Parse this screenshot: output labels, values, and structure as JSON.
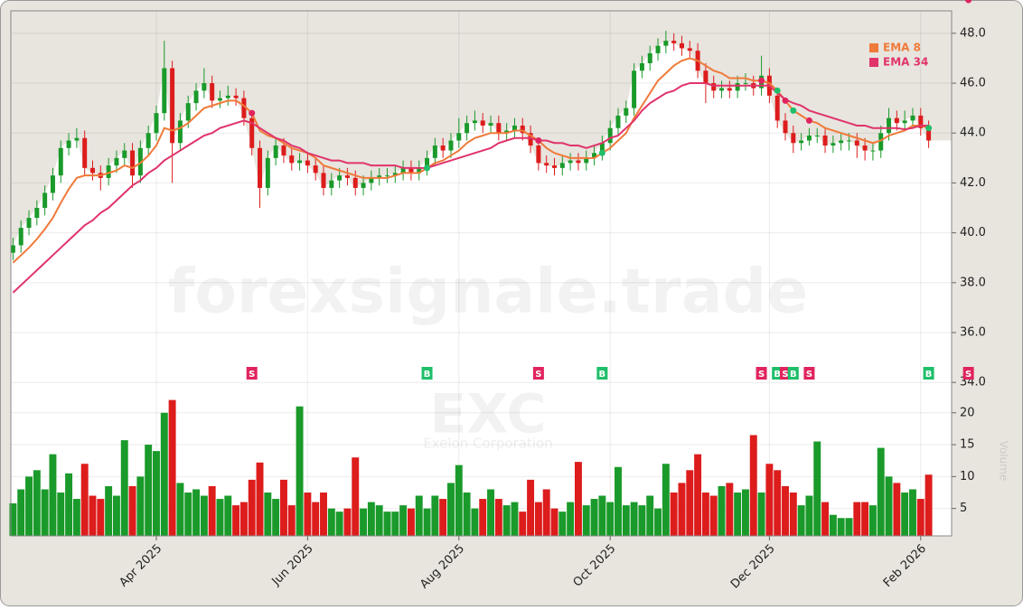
{
  "chart_data": {
    "type": "candlestick",
    "watermark": "forexsignale.trade",
    "symbol": "EXC",
    "company": "Exelon Corporation",
    "up_color": "#1a9a2a",
    "down_color": "#dd1c1c",
    "background_color": "#e8e4de",
    "legend": "upper right",
    "grid": true,
    "categories": [
      null,
      null,
      null,
      null,
      null,
      null,
      null,
      null,
      null,
      null,
      null,
      null,
      null,
      null,
      null,
      null,
      null,
      null,
      "Apr 2025",
      null,
      null,
      null,
      null,
      null,
      null,
      null,
      null,
      null,
      null,
      null,
      null,
      null,
      null,
      null,
      null,
      null,
      null,
      "Jun 2025",
      null,
      null,
      null,
      null,
      null,
      null,
      null,
      null,
      null,
      null,
      null,
      null,
      null,
      null,
      null,
      null,
      null,
      null,
      "Aug 2025",
      null,
      null,
      null,
      null,
      null,
      null,
      null,
      null,
      null,
      null,
      null,
      null,
      null,
      null,
      null,
      null,
      null,
      null,
      "Oct 2025",
      null,
      null,
      null,
      null,
      null,
      null,
      null,
      null,
      null,
      null,
      null,
      null,
      null,
      null,
      null,
      null,
      null,
      null,
      null,
      "Dec 2025",
      null,
      null,
      null,
      null,
      null,
      null,
      null,
      null,
      null,
      null,
      null,
      null,
      null,
      null,
      null,
      null,
      null,
      null,
      "Feb 2026",
      null
    ],
    "open": [
      39.2,
      39.5,
      40.2,
      40.6,
      41.0,
      41.6,
      42.3,
      43.4,
      43.7,
      43.8,
      42.6,
      42.4,
      42.2,
      42.7,
      43.0,
      43.3,
      42.3,
      43.4,
      44.0,
      44.8,
      46.6,
      43.6,
      44.5,
      45.2,
      45.7,
      46.0,
      45.3,
      45.4,
      45.5,
      45.4,
      44.6,
      43.4,
      41.8,
      43.0,
      43.5,
      43.1,
      42.8,
      42.9,
      42.7,
      42.4,
      41.8,
      42.1,
      42.3,
      42.2,
      41.8,
      42.0,
      42.2,
      42.3,
      42.3,
      42.4,
      42.6,
      42.4,
      42.6,
      43.0,
      43.5,
      43.3,
      43.7,
      44.0,
      44.4,
      44.5,
      44.3,
      44.4,
      44.0,
      44.1,
      44.3,
      44.0,
      43.5,
      42.8,
      42.7,
      42.6,
      42.8,
      42.9,
      42.8,
      43.0,
      43.2,
      43.6,
      44.2,
      44.7,
      45.0,
      46.5,
      46.8,
      47.2,
      47.5,
      47.7,
      47.6,
      47.4,
      47.3,
      46.5,
      46.0,
      45.7,
      45.8,
      45.7,
      46.0,
      46.0,
      45.8,
      46.3,
      45.5,
      44.5,
      44.0,
      43.6,
      43.7,
      43.9,
      43.9,
      43.5,
      43.6,
      43.7,
      43.7,
      43.5,
      43.3,
      43.3,
      44.0,
      44.6,
      44.4,
      44.5,
      44.7,
      44.2
    ],
    "high": [
      39.8,
      40.5,
      40.9,
      41.3,
      41.9,
      42.6,
      43.7,
      44.0,
      44.2,
      44.1,
      42.9,
      42.7,
      43.0,
      43.3,
      43.6,
      43.6,
      43.7,
      44.3,
      45.1,
      47.7,
      46.9,
      44.8,
      45.5,
      46.0,
      46.6,
      46.3,
      45.7,
      45.9,
      45.8,
      45.7,
      44.9,
      43.7,
      43.3,
      43.8,
      43.8,
      43.4,
      43.2,
      43.2,
      43.0,
      42.7,
      42.4,
      42.6,
      42.6,
      42.5,
      42.3,
      42.5,
      42.6,
      42.6,
      42.7,
      42.9,
      42.9,
      42.9,
      43.3,
      43.8,
      43.8,
      44.0,
      44.6,
      44.7,
      44.9,
      44.8,
      44.7,
      44.7,
      44.4,
      44.6,
      44.6,
      44.3,
      43.8,
      43.1,
      43.0,
      43.1,
      43.2,
      43.2,
      43.3,
      43.5,
      43.9,
      44.5,
      45.0,
      45.3,
      46.8,
      47.1,
      47.5,
      47.8,
      48.1,
      48.0,
      47.9,
      47.7,
      47.6,
      46.8,
      46.3,
      46.1,
      46.1,
      46.3,
      46.4,
      46.3,
      47.1,
      46.6,
      45.8,
      44.8,
      44.3,
      44.0,
      44.2,
      44.2,
      44.2,
      43.9,
      44.0,
      44.0,
      44.0,
      43.8,
      43.6,
      44.3,
      45.0,
      44.9,
      44.9,
      45.0,
      45.0,
      44.5
    ],
    "low": [
      38.9,
      39.2,
      39.9,
      40.3,
      40.7,
      41.3,
      42.0,
      43.1,
      43.4,
      42.3,
      42.1,
      41.7,
      41.9,
      42.4,
      42.7,
      41.8,
      42.0,
      43.1,
      43.7,
      44.5,
      42.0,
      43.3,
      44.2,
      44.9,
      45.4,
      45.0,
      45.0,
      45.1,
      45.1,
      44.3,
      43.1,
      41.0,
      41.5,
      42.7,
      42.8,
      42.5,
      42.5,
      42.4,
      42.1,
      41.5,
      41.5,
      41.8,
      41.9,
      41.5,
      41.5,
      41.7,
      41.9,
      42.0,
      42.0,
      42.1,
      42.1,
      42.1,
      42.3,
      42.7,
      43.0,
      43.0,
      43.4,
      43.7,
      44.1,
      44.0,
      44.0,
      43.7,
      43.7,
      43.8,
      43.7,
      43.2,
      42.5,
      42.4,
      42.3,
      42.3,
      42.5,
      42.5,
      42.5,
      42.7,
      42.9,
      43.3,
      43.9,
      44.4,
      44.7,
      46.2,
      46.5,
      46.9,
      47.2,
      47.3,
      47.1,
      47.0,
      46.2,
      45.2,
      45.4,
      45.4,
      45.4,
      45.4,
      45.7,
      45.5,
      45.5,
      45.2,
      44.2,
      43.7,
      43.2,
      43.3,
      43.5,
      43.6,
      43.2,
      43.2,
      43.3,
      43.3,
      43.0,
      42.9,
      42.9,
      43.0,
      43.7,
      44.1,
      44.1,
      44.2,
      43.9,
      43.4
    ],
    "close": [
      39.5,
      40.2,
      40.6,
      41.0,
      41.6,
      42.3,
      43.4,
      43.7,
      43.8,
      42.6,
      42.4,
      42.2,
      42.7,
      43.0,
      43.3,
      42.3,
      43.4,
      44.0,
      44.8,
      46.6,
      43.6,
      44.5,
      45.2,
      45.7,
      46.0,
      45.3,
      45.4,
      45.5,
      45.4,
      44.6,
      43.4,
      41.8,
      43.0,
      43.5,
      43.1,
      42.8,
      42.9,
      42.7,
      42.4,
      41.8,
      42.1,
      42.3,
      42.2,
      41.8,
      42.0,
      42.2,
      42.3,
      42.3,
      42.4,
      42.6,
      42.4,
      42.6,
      43.0,
      43.5,
      43.3,
      43.7,
      44.0,
      44.4,
      44.5,
      44.3,
      44.4,
      44.0,
      44.1,
      44.3,
      44.0,
      43.5,
      42.8,
      42.7,
      42.6,
      42.8,
      42.9,
      42.8,
      43.0,
      43.2,
      43.6,
      44.2,
      44.7,
      45.0,
      46.5,
      46.8,
      47.2,
      47.5,
      47.7,
      47.6,
      47.4,
      47.3,
      46.5,
      46.0,
      45.7,
      45.8,
      45.7,
      46.0,
      46.0,
      45.8,
      46.3,
      45.5,
      44.5,
      44.0,
      43.6,
      43.7,
      43.9,
      43.9,
      43.5,
      43.6,
      43.7,
      43.7,
      43.5,
      43.3,
      43.3,
      44.0,
      44.6,
      44.4,
      44.5,
      44.7,
      44.2,
      43.7
    ],
    "series": [
      {
        "name": "EMA 8",
        "color": "#f07a3a",
        "values": [
          38.8,
          39.1,
          39.4,
          39.75,
          40.15,
          40.6,
          41.2,
          41.75,
          42.2,
          42.3,
          42.3,
          42.3,
          42.4,
          42.5,
          42.7,
          42.6,
          42.8,
          43.1,
          43.5,
          44.2,
          44.1,
          44.2,
          44.4,
          44.7,
          45.0,
          45.1,
          45.2,
          45.3,
          45.3,
          45.1,
          44.8,
          44.1,
          43.9,
          43.8,
          43.6,
          43.4,
          43.3,
          43.2,
          43.0,
          42.7,
          42.6,
          42.5,
          42.4,
          42.3,
          42.2,
          42.2,
          42.2,
          42.2,
          42.3,
          42.4,
          42.4,
          42.4,
          42.6,
          42.8,
          42.9,
          43.1,
          43.3,
          43.6,
          43.8,
          43.9,
          44.0,
          44.0,
          44.0,
          44.1,
          44.1,
          43.9,
          43.7,
          43.4,
          43.2,
          43.1,
          43.0,
          43.0,
          43.0,
          43.0,
          43.2,
          43.4,
          43.7,
          44.0,
          44.6,
          45.1,
          45.6,
          46.1,
          46.4,
          46.7,
          46.9,
          47.0,
          46.9,
          46.7,
          46.5,
          46.4,
          46.2,
          46.2,
          46.2,
          46.1,
          46.1,
          46.0,
          45.7,
          45.3,
          44.9,
          44.7,
          44.5,
          44.4,
          44.2,
          44.1,
          44.0,
          43.9,
          43.8,
          43.7,
          43.6,
          43.7,
          43.9,
          44.0,
          44.1,
          44.3,
          44.3,
          44.2
        ]
      },
      {
        "name": "EMA 34",
        "color": "#e0336a",
        "values": [
          37.6,
          37.9,
          38.2,
          38.5,
          38.8,
          39.1,
          39.4,
          39.7,
          40.0,
          40.3,
          40.5,
          40.8,
          41.0,
          41.3,
          41.6,
          41.9,
          42.1,
          42.4,
          42.6,
          42.9,
          43.1,
          43.3,
          43.5,
          43.7,
          43.9,
          44.0,
          44.2,
          44.3,
          44.4,
          44.5,
          44.4,
          44.2,
          44.0,
          43.8,
          43.7,
          43.5,
          43.4,
          43.2,
          43.1,
          43.0,
          42.9,
          42.9,
          42.8,
          42.8,
          42.8,
          42.7,
          42.7,
          42.7,
          42.7,
          42.6,
          42.6,
          42.6,
          42.6,
          42.7,
          42.8,
          42.9,
          43.0,
          43.1,
          43.2,
          43.3,
          43.4,
          43.6,
          43.7,
          43.8,
          43.8,
          43.8,
          43.7,
          43.7,
          43.6,
          43.6,
          43.5,
          43.5,
          43.4,
          43.5,
          43.6,
          43.8,
          43.9,
          44.2,
          44.5,
          44.9,
          45.2,
          45.4,
          45.6,
          45.7,
          45.9,
          46.0,
          46.0,
          46.0,
          45.9,
          45.9,
          45.9,
          45.9,
          45.9,
          45.9,
          45.9,
          45.9,
          45.6,
          45.35,
          45.2,
          45.1,
          44.9,
          44.8,
          44.7,
          44.6,
          44.5,
          44.4,
          44.3,
          44.3,
          44.2,
          44.2,
          44.2,
          44.2,
          44.15,
          44.2,
          44.3,
          44.3
        ]
      }
    ],
    "signals": [
      null,
      null,
      null,
      null,
      null,
      null,
      null,
      null,
      null,
      null,
      null,
      null,
      null,
      null,
      null,
      null,
      null,
      null,
      null,
      null,
      null,
      null,
      null,
      null,
      null,
      null,
      null,
      null,
      null,
      null,
      "S",
      null,
      null,
      null,
      null,
      null,
      null,
      null,
      null,
      null,
      null,
      null,
      null,
      null,
      null,
      null,
      null,
      null,
      null,
      null,
      null,
      null,
      "B",
      null,
      null,
      null,
      null,
      null,
      null,
      null,
      null,
      null,
      null,
      null,
      null,
      null,
      "S",
      null,
      null,
      null,
      null,
      null,
      null,
      null,
      "B",
      null,
      null,
      null,
      null,
      null,
      null,
      null,
      null,
      null,
      null,
      null,
      null,
      null,
      null,
      null,
      null,
      null,
      null,
      null,
      "S",
      null,
      "B",
      "S",
      "B",
      null,
      "S",
      null,
      null,
      null,
      null,
      null,
      null,
      null,
      null,
      null,
      null,
      null,
      null,
      null,
      null,
      "B",
      null,
      null,
      null,
      null,
      "S"
    ],
    "signal_colors": {
      "S": "#e0245e",
      "B": "#1fbf6a"
    },
    "ylim": [
      33.5,
      48.9
    ],
    "yticks": [
      {
        "value": 34,
        "label": "34.0"
      },
      {
        "value": 36,
        "label": "36.0"
      },
      {
        "value": 38,
        "label": "38.0"
      },
      {
        "value": 40,
        "label": "40.0"
      },
      {
        "value": 42,
        "label": "42.0"
      },
      {
        "value": 44,
        "label": "44.0"
      },
      {
        "value": 46,
        "label": "46.0"
      },
      {
        "value": 48,
        "label": "48.0"
      }
    ],
    "volume": {
      "axis_label": "Volume",
      "ylim": [
        0.7,
        22.8
      ],
      "yticks": [
        5,
        10,
        15,
        20
      ],
      "values": [
        5.8,
        8,
        10,
        11,
        8,
        13.5,
        7.5,
        10.5,
        6.5,
        12,
        7,
        6.5,
        8.5,
        7,
        15.7,
        8.5,
        10,
        15,
        14,
        20,
        22,
        9,
        7.5,
        8,
        7,
        8.5,
        6.5,
        7,
        5.5,
        6,
        9.5,
        12.2,
        7.5,
        6.5,
        9.5,
        5.5,
        21,
        7.5,
        6,
        7.5,
        5,
        4.5,
        5,
        13,
        5,
        6,
        5.5,
        4.5,
        4.5,
        5.5,
        5,
        7,
        5,
        7,
        6.5,
        9,
        11.8,
        7.5,
        5,
        6.5,
        8,
        6.5,
        5.5,
        6,
        4.5,
        9.5,
        6,
        8,
        5,
        4.5,
        6,
        12.3,
        5.5,
        6.5,
        7,
        6,
        11.5,
        5.5,
        6,
        5.5,
        7,
        5,
        12,
        7.5,
        9,
        11,
        13.5,
        7.5,
        7,
        8.5,
        9,
        7.5,
        8,
        16.5,
        7.5,
        12,
        11,
        8.5,
        7.5,
        5.5,
        7,
        15.5,
        6,
        4,
        3.5,
        3.5,
        6,
        6,
        5.5,
        14.5,
        10,
        9,
        7.5,
        8,
        6.5,
        10.3
      ]
    }
  }
}
